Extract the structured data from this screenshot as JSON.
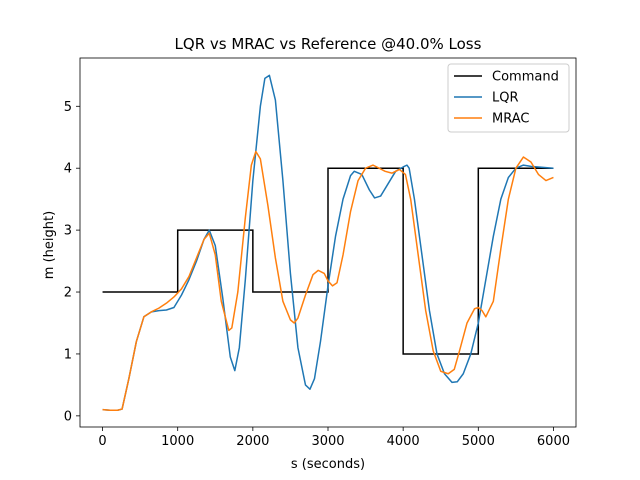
{
  "chart_data": {
    "type": "line",
    "title": "LQR vs MRAC vs Reference @40.0% Loss",
    "xlabel": "s (seconds)",
    "ylabel": "m (height)",
    "xlim": [
      -300,
      6300
    ],
    "ylim": [
      -0.18,
      5.78
    ],
    "xticks": [
      0,
      1000,
      2000,
      3000,
      4000,
      5000,
      6000
    ],
    "xtick_labels": [
      "0",
      "1000",
      "2000",
      "3000",
      "4000",
      "5000",
      "6000"
    ],
    "yticks": [
      0,
      1,
      2,
      3,
      4,
      5
    ],
    "ytick_labels": [
      "0",
      "1",
      "2",
      "3",
      "4",
      "5"
    ],
    "grid": false,
    "legend_position": "top-right",
    "series": [
      {
        "name": "Command",
        "color": "#000000",
        "step": true,
        "x": [
          0,
          1000,
          1000,
          2000,
          2000,
          3000,
          3000,
          4000,
          4000,
          5000,
          5000,
          6000
        ],
        "y": [
          2,
          2,
          3,
          3,
          2,
          2,
          4,
          4,
          1,
          1,
          4,
          4
        ]
      },
      {
        "name": "LQR",
        "color": "#1f77b4",
        "x": [
          0,
          100,
          200,
          260,
          350,
          450,
          550,
          650,
          750,
          850,
          950,
          1050,
          1150,
          1250,
          1350,
          1420,
          1500,
          1600,
          1700,
          1760,
          1820,
          1900,
          2000,
          2100,
          2160,
          2220,
          2300,
          2400,
          2500,
          2600,
          2700,
          2760,
          2820,
          2900,
          3000,
          3100,
          3200,
          3300,
          3350,
          3450,
          3550,
          3620,
          3700,
          3800,
          3900,
          4000,
          4050,
          4080,
          4150,
          4250,
          4350,
          4450,
          4550,
          4650,
          4720,
          4800,
          4900,
          5000,
          5100,
          5200,
          5300,
          5400,
          5500,
          5600,
          5700,
          5800,
          6000
        ],
        "y": [
          0.1,
          0.09,
          0.09,
          0.11,
          0.6,
          1.2,
          1.6,
          1.68,
          1.7,
          1.71,
          1.75,
          1.95,
          2.2,
          2.5,
          2.85,
          3.0,
          2.75,
          1.9,
          0.95,
          0.73,
          1.1,
          2.2,
          3.8,
          5.0,
          5.45,
          5.5,
          5.1,
          3.8,
          2.3,
          1.1,
          0.5,
          0.43,
          0.6,
          1.2,
          2.1,
          2.9,
          3.5,
          3.88,
          3.95,
          3.9,
          3.65,
          3.52,
          3.55,
          3.75,
          3.95,
          4.02,
          4.05,
          4.0,
          3.5,
          2.6,
          1.7,
          1.0,
          0.68,
          0.54,
          0.55,
          0.68,
          1.0,
          1.5,
          2.2,
          2.9,
          3.5,
          3.85,
          4.0,
          4.05,
          4.03,
          4.02,
          4.0
        ]
      },
      {
        "name": "MRAC",
        "color": "#ff7f0e",
        "x": [
          0,
          100,
          200,
          260,
          350,
          450,
          550,
          650,
          750,
          850,
          950,
          1050,
          1150,
          1250,
          1350,
          1420,
          1500,
          1580,
          1680,
          1720,
          1800,
          1900,
          1980,
          2040,
          2100,
          2200,
          2300,
          2400,
          2500,
          2550,
          2600,
          2700,
          2800,
          2870,
          2950,
          3000,
          3060,
          3120,
          3200,
          3300,
          3400,
          3500,
          3600,
          3680,
          3760,
          3850,
          3950,
          4030,
          4100,
          4200,
          4300,
          4400,
          4500,
          4600,
          4680,
          4750,
          4850,
          4950,
          5000,
          5050,
          5100,
          5200,
          5300,
          5400,
          5500,
          5600,
          5700,
          5800,
          5900,
          6000
        ],
        "y": [
          0.1,
          0.09,
          0.09,
          0.11,
          0.6,
          1.2,
          1.6,
          1.68,
          1.74,
          1.82,
          1.92,
          2.05,
          2.25,
          2.55,
          2.85,
          2.95,
          2.6,
          1.85,
          1.38,
          1.42,
          2.0,
          3.2,
          4.05,
          4.27,
          4.15,
          3.4,
          2.55,
          1.85,
          1.55,
          1.5,
          1.58,
          1.95,
          2.28,
          2.35,
          2.3,
          2.18,
          2.1,
          2.15,
          2.6,
          3.3,
          3.8,
          4.0,
          4.05,
          4.0,
          3.95,
          3.92,
          3.98,
          3.9,
          3.5,
          2.6,
          1.7,
          1.05,
          0.72,
          0.68,
          0.75,
          1.05,
          1.5,
          1.73,
          1.75,
          1.7,
          1.6,
          1.85,
          2.7,
          3.5,
          4.0,
          4.18,
          4.1,
          3.9,
          3.8,
          3.85
        ]
      }
    ]
  }
}
